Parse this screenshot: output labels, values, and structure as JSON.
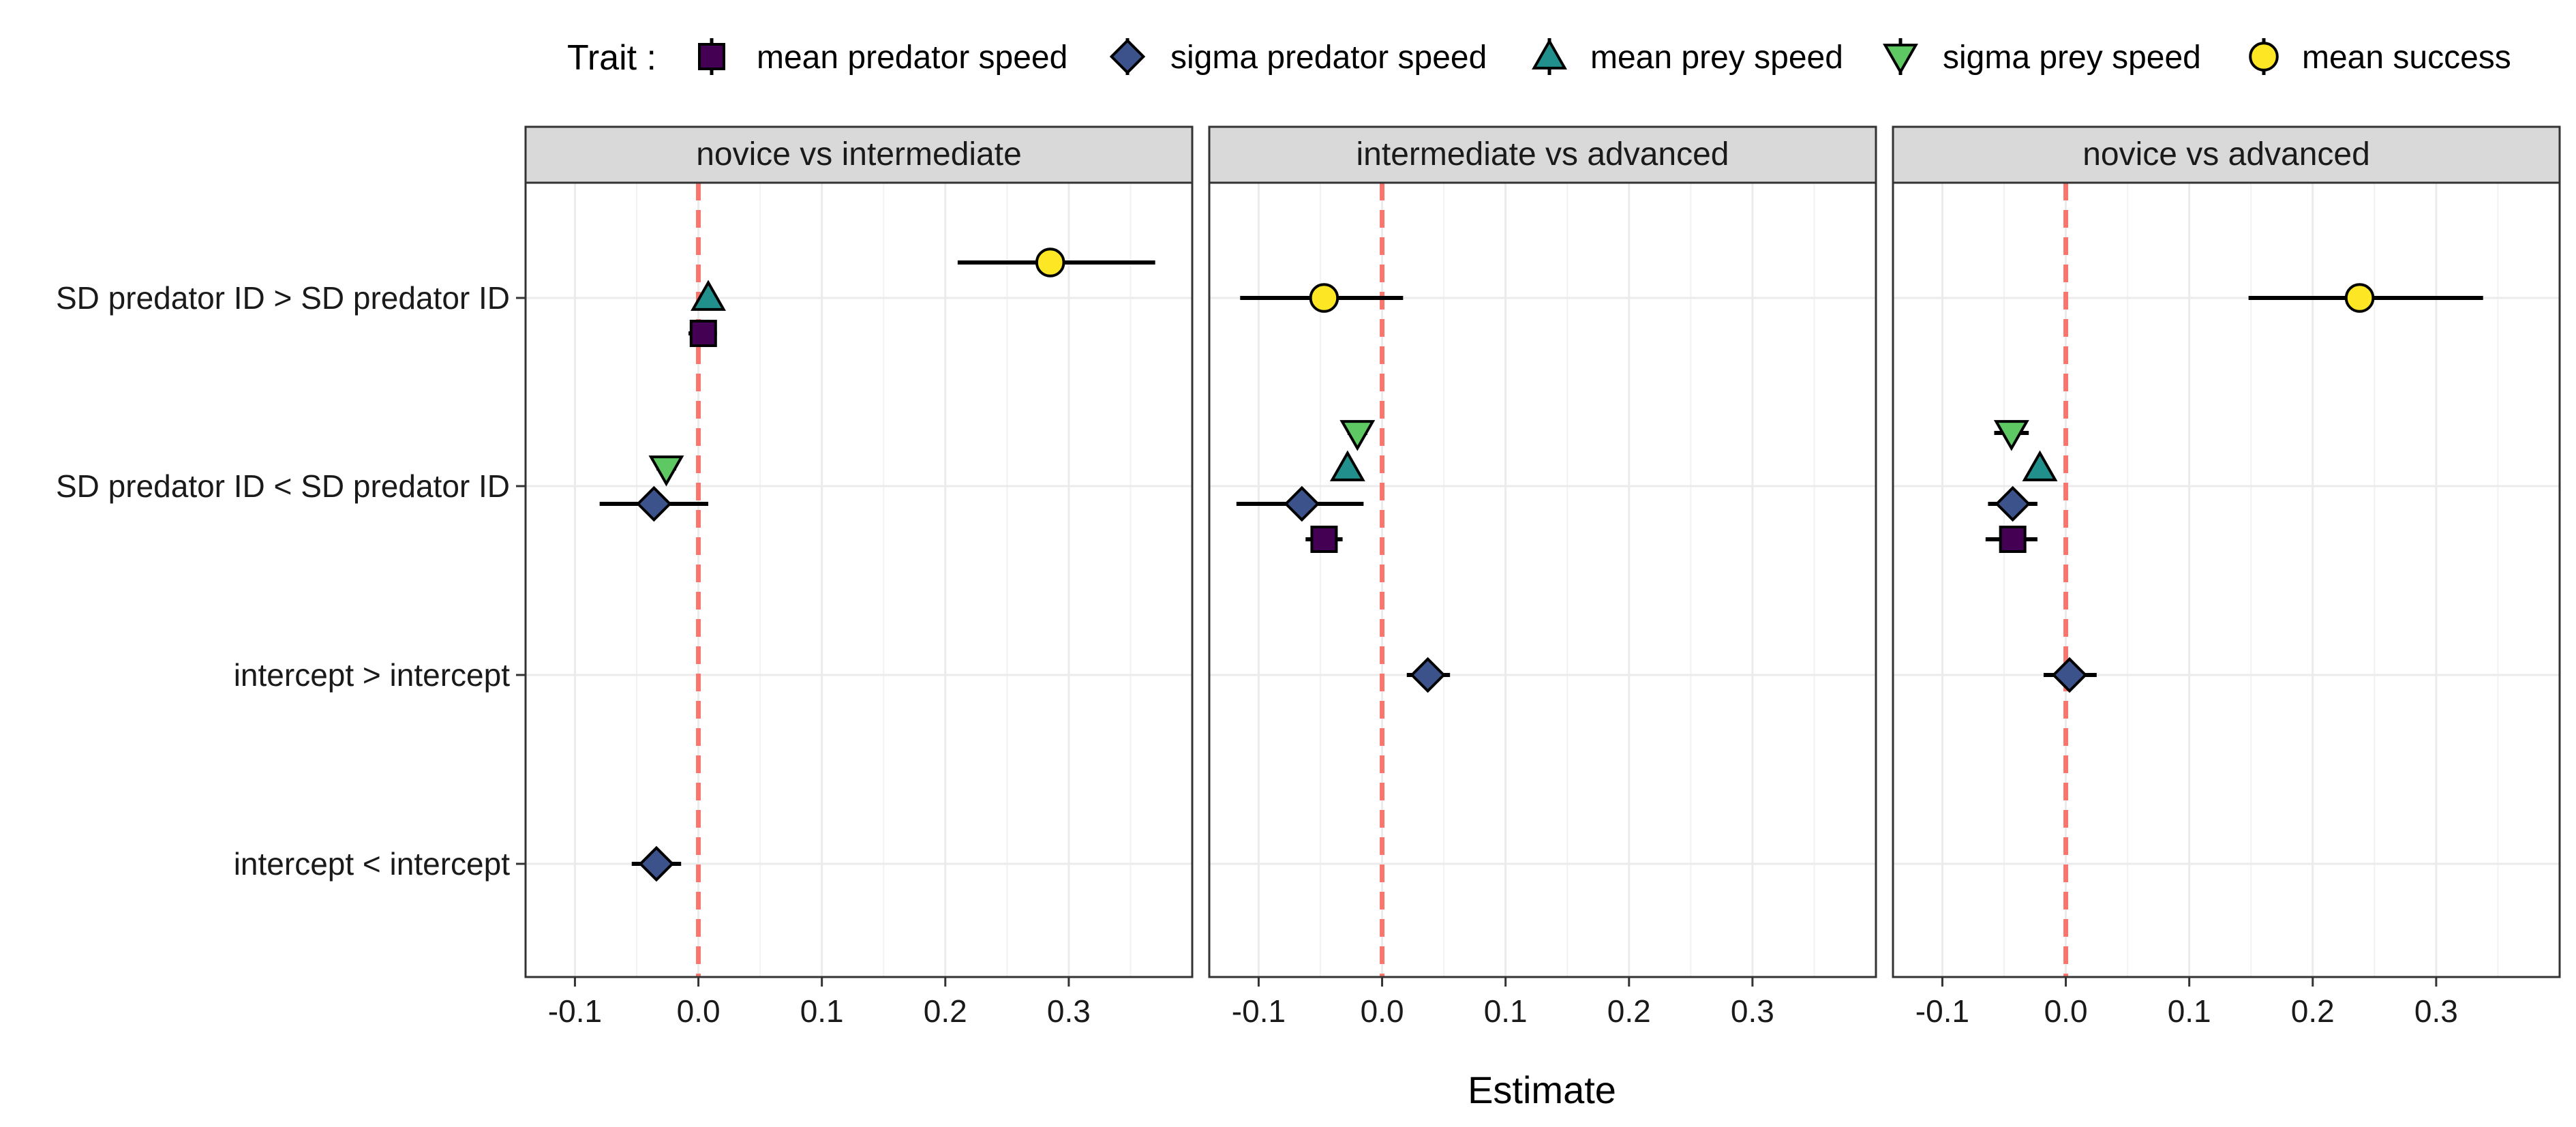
{
  "chart_data": {
    "type": "scatter",
    "title": "",
    "xlabel": "Estimate",
    "ylabel": "",
    "legend_title": "Trait :",
    "legend_position": "top",
    "grid": true,
    "reference_line": 0,
    "xlim": [
      -0.14,
      0.4
    ],
    "x_ticks": [
      -0.1,
      0.0,
      0.1,
      0.2,
      0.3
    ],
    "x_tick_labels": [
      "-0.1",
      "0.0",
      "0.1",
      "0.2",
      "0.3"
    ],
    "y_categories": [
      "SD predator ID > SD predator ID",
      "SD predator ID < SD predator ID",
      "intercept > intercept",
      "intercept < intercept"
    ],
    "series": [
      {
        "name": "mean predator speed",
        "shape": "square",
        "color": "#440154"
      },
      {
        "name": "sigma predator speed",
        "shape": "diamond",
        "color": "#3b528b"
      },
      {
        "name": "mean prey speed",
        "shape": "triangle-up",
        "color": "#21908c"
      },
      {
        "name": "sigma prey speed",
        "shape": "triangle-down",
        "color": "#5ec962"
      },
      {
        "name": "mean success",
        "shape": "circle",
        "color": "#fde725"
      }
    ],
    "panels": [
      {
        "label": "novice vs intermediate",
        "points": [
          {
            "trait": "mean success",
            "category": "SD predator ID > SD predator ID",
            "estimate": 0.285,
            "lower": 0.21,
            "upper": 0.37
          },
          {
            "trait": "mean prey speed",
            "category": "SD predator ID > SD predator ID",
            "estimate": 0.008,
            "lower": 0.003,
            "upper": 0.013
          },
          {
            "trait": "mean predator speed",
            "category": "SD predator ID > SD predator ID",
            "estimate": 0.004,
            "lower": -0.008,
            "upper": 0.015
          },
          {
            "trait": "sigma prey speed",
            "category": "SD predator ID < SD predator ID",
            "estimate": -0.026,
            "lower": -0.034,
            "upper": -0.018
          },
          {
            "trait": "sigma predator speed",
            "category": "SD predator ID < SD predator ID",
            "estimate": -0.036,
            "lower": -0.08,
            "upper": 0.008
          },
          {
            "trait": "sigma predator speed",
            "category": "intercept < intercept",
            "estimate": -0.034,
            "lower": -0.054,
            "upper": -0.014
          }
        ]
      },
      {
        "label": "intermediate vs advanced",
        "points": [
          {
            "trait": "mean success",
            "category": "SD predator ID > SD predator ID",
            "estimate": -0.047,
            "lower": -0.115,
            "upper": 0.017
          },
          {
            "trait": "sigma prey speed",
            "category": "SD predator ID < SD predator ID",
            "estimate": -0.02,
            "lower": -0.028,
            "upper": -0.012
          },
          {
            "trait": "mean prey speed",
            "category": "SD predator ID < SD predator ID",
            "estimate": -0.028,
            "lower": -0.034,
            "upper": -0.022
          },
          {
            "trait": "sigma predator speed",
            "category": "SD predator ID < SD predator ID",
            "estimate": -0.065,
            "lower": -0.118,
            "upper": -0.015
          },
          {
            "trait": "mean predator speed",
            "category": "SD predator ID < SD predator ID",
            "estimate": -0.047,
            "lower": -0.062,
            "upper": -0.032
          },
          {
            "trait": "sigma predator speed",
            "category": "intercept > intercept",
            "estimate": 0.037,
            "lower": 0.02,
            "upper": 0.055
          }
        ]
      },
      {
        "label": "novice vs advanced",
        "points": [
          {
            "trait": "mean success",
            "category": "SD predator ID > SD predator ID",
            "estimate": 0.238,
            "lower": 0.148,
            "upper": 0.338
          },
          {
            "trait": "sigma prey speed",
            "category": "SD predator ID < SD predator ID",
            "estimate": -0.044,
            "lower": -0.058,
            "upper": -0.03
          },
          {
            "trait": "mean prey speed",
            "category": "SD predator ID < SD predator ID",
            "estimate": -0.021,
            "lower": -0.027,
            "upper": -0.015
          },
          {
            "trait": "sigma predator speed",
            "category": "SD predator ID < SD predator ID",
            "estimate": -0.043,
            "lower": -0.063,
            "upper": -0.023
          },
          {
            "trait": "mean predator speed",
            "category": "SD predator ID < SD predator ID",
            "estimate": -0.043,
            "lower": -0.065,
            "upper": -0.023
          },
          {
            "trait": "sigma predator speed",
            "category": "intercept > intercept",
            "estimate": 0.003,
            "lower": -0.018,
            "upper": 0.025
          }
        ]
      }
    ]
  }
}
